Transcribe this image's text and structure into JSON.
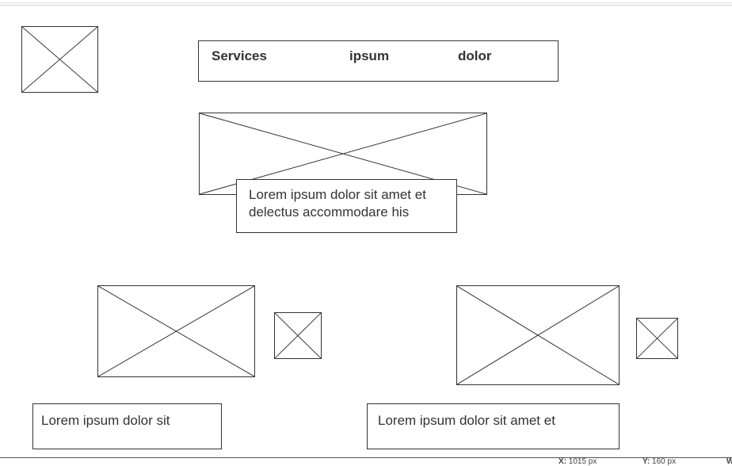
{
  "nav": {
    "item1": "Services",
    "item2": "ipsum",
    "item3": "dolor"
  },
  "hero": {
    "caption": "Lorem ipsum dolor sit amet et delectus accommodare his"
  },
  "cards": {
    "left_caption": "Lorem ipsum dolor sit",
    "right_caption": "Lorem ipsum dolor sit amet et"
  },
  "status_bar": {
    "x_label": "X:",
    "x_value": "1015 px",
    "y_label": "Y:",
    "y_value": "160 px",
    "extra": "W"
  }
}
